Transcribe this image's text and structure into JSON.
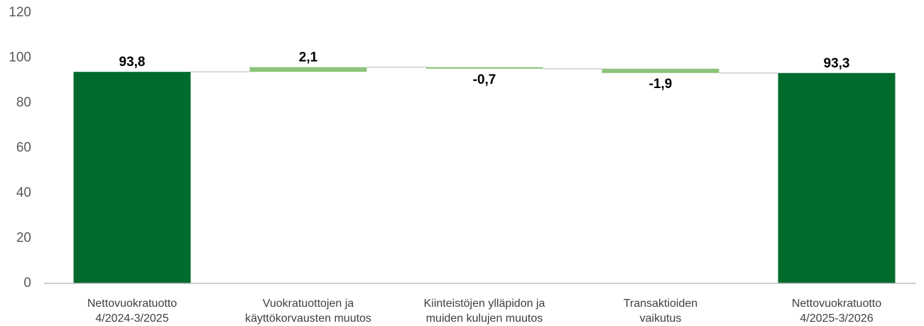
{
  "chart_data": {
    "type": "waterfall",
    "categories": [
      [
        "Nettovuokratuotto",
        "4/2024-3/2025"
      ],
      [
        "Vuokratuottojen ja",
        "käyttökorvausten muutos"
      ],
      [
        "Kiinteistöjen ylläpidon ja",
        "muiden kulujen muutos"
      ],
      [
        "Transaktioiden",
        "vaikutus"
      ],
      [
        "Nettovuokratuotto",
        "4/2025-3/2026"
      ]
    ],
    "values": [
      93.8,
      2.1,
      -0.7,
      -1.9,
      93.3
    ],
    "value_labels": [
      "93,8",
      "2,1",
      "-0,7",
      "-1,9",
      "93,3"
    ],
    "is_total": [
      true,
      false,
      false,
      false,
      true
    ],
    "total_color": "#006b2d",
    "change_color": "#8cc37a",
    "ylim": [
      0,
      120
    ],
    "yticks": [
      0,
      20,
      40,
      60,
      80,
      100,
      120
    ],
    "grid": false
  }
}
